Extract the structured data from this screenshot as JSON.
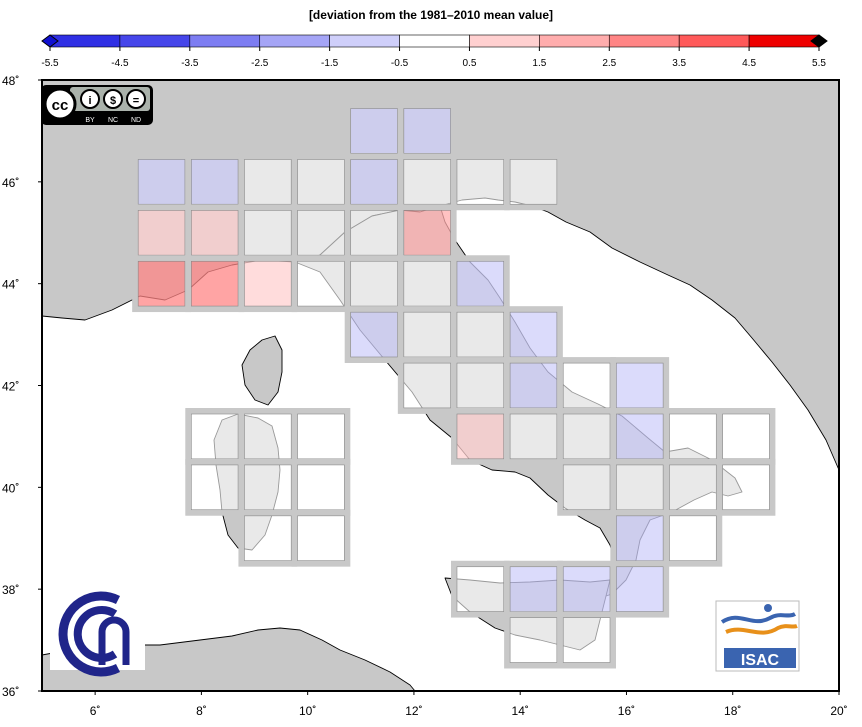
{
  "title": "[deviation from the 1981–2010 mean value]",
  "colorbar": {
    "ticks": [
      "-5.5",
      "-4.5",
      "-3.5",
      "-2.5",
      "-1.5",
      "-0.5",
      "0.5",
      "1.5",
      "2.5",
      "3.5",
      "4.5",
      "5.5"
    ],
    "tick_values": [
      -5.5,
      -4.5,
      -3.5,
      -2.5,
      -1.5,
      -0.5,
      0.5,
      1.5,
      2.5,
      3.5,
      4.5,
      5.5
    ],
    "colors": [
      "#2f2fe4",
      "#4646ea",
      "#7d7df2",
      "#a5a5f6",
      "#cfcffa",
      "#ffffff",
      "#ffd0d0",
      "#ffadad",
      "#ff8585",
      "#ff5a5a",
      "#ee0000"
    ]
  },
  "axes": {
    "lon_labels": [
      "6˚",
      "8˚",
      "10˚",
      "12˚",
      "14˚",
      "16˚",
      "18˚",
      "20˚"
    ],
    "lon_values": [
      6,
      8,
      10,
      12,
      14,
      16,
      18,
      20
    ],
    "lat_labels": [
      "36˚",
      "38˚",
      "40˚",
      "42˚",
      "44˚",
      "46˚",
      "48˚"
    ],
    "lat_values": [
      36,
      38,
      40,
      42,
      44,
      46,
      48
    ],
    "lon_range": [
      5,
      20
    ],
    "lat_range": [
      36,
      48
    ]
  },
  "license_badge": {
    "top": [
      "cc",
      "i",
      "$",
      "="
    ],
    "bottom": [
      "BY",
      "NC",
      "ND"
    ]
  },
  "logos": {
    "isac": "ISAC",
    "cnr": "cnr-logo"
  },
  "chart_data": {
    "type": "heatmap",
    "description_units": "deviation from the 1981–2010 mean value",
    "cell_size_deg": 1,
    "xlim": [
      5,
      20
    ],
    "ylim": [
      36,
      48
    ],
    "cells": [
      {
        "lon": 11.25,
        "lat": 47,
        "value": -1
      },
      {
        "lon": 12.25,
        "lat": 47,
        "value": -1
      },
      {
        "lon": 7.25,
        "lat": 46,
        "value": -1
      },
      {
        "lon": 8.25,
        "lat": 46,
        "value": -1
      },
      {
        "lon": 9.25,
        "lat": 46,
        "value": 0
      },
      {
        "lon": 10.25,
        "lat": 46,
        "value": 0
      },
      {
        "lon": 11.25,
        "lat": 46,
        "value": -1
      },
      {
        "lon": 12.25,
        "lat": 46,
        "value": 0
      },
      {
        "lon": 13.25,
        "lat": 46,
        "value": 0
      },
      {
        "lon": 14.25,
        "lat": 46,
        "value": 0
      },
      {
        "lon": 7.25,
        "lat": 45,
        "value": 1
      },
      {
        "lon": 8.25,
        "lat": 45,
        "value": 1
      },
      {
        "lon": 9.25,
        "lat": 45,
        "value": 0
      },
      {
        "lon": 10.25,
        "lat": 45,
        "value": 0
      },
      {
        "lon": 11.25,
        "lat": 45,
        "value": 0
      },
      {
        "lon": 12.25,
        "lat": 45,
        "value": 2
      },
      {
        "lon": 7.25,
        "lat": 44,
        "value": 3
      },
      {
        "lon": 8.25,
        "lat": 44,
        "value": 3
      },
      {
        "lon": 9.25,
        "lat": 44,
        "value": 1
      },
      {
        "lon": 10.25,
        "lat": 44,
        "value": 0
      },
      {
        "lon": 11.25,
        "lat": 44,
        "value": 0
      },
      {
        "lon": 12.25,
        "lat": 44,
        "value": 0
      },
      {
        "lon": 13.25,
        "lat": 44,
        "value": -1
      },
      {
        "lon": 11.25,
        "lat": 43,
        "value": -1
      },
      {
        "lon": 12.25,
        "lat": 43,
        "value": 0
      },
      {
        "lon": 13.25,
        "lat": 43,
        "value": 0
      },
      {
        "lon": 14.25,
        "lat": 43,
        "value": -1
      },
      {
        "lon": 12.25,
        "lat": 42,
        "value": 0
      },
      {
        "lon": 13.25,
        "lat": 42,
        "value": 0
      },
      {
        "lon": 14.25,
        "lat": 42,
        "value": -1
      },
      {
        "lon": 15.25,
        "lat": 42,
        "value": 0
      },
      {
        "lon": 16.25,
        "lat": 42,
        "value": -1
      },
      {
        "lon": 8.25,
        "lat": 41,
        "value": 0
      },
      {
        "lon": 9.25,
        "lat": 41,
        "value": 0
      },
      {
        "lon": 10.25,
        "lat": 41,
        "value": 0
      },
      {
        "lon": 13.25,
        "lat": 41,
        "value": 1
      },
      {
        "lon": 14.25,
        "lat": 41,
        "value": 0
      },
      {
        "lon": 15.25,
        "lat": 41,
        "value": 0
      },
      {
        "lon": 16.25,
        "lat": 41,
        "value": -1
      },
      {
        "lon": 17.25,
        "lat": 41,
        "value": 0
      },
      {
        "lon": 18.25,
        "lat": 41,
        "value": 0
      },
      {
        "lon": 8.25,
        "lat": 40,
        "value": 0
      },
      {
        "lon": 9.25,
        "lat": 40,
        "value": 0
      },
      {
        "lon": 10.25,
        "lat": 40,
        "value": 0
      },
      {
        "lon": 15.25,
        "lat": 40,
        "value": 0
      },
      {
        "lon": 16.25,
        "lat": 40,
        "value": 0
      },
      {
        "lon": 17.25,
        "lat": 40,
        "value": 0
      },
      {
        "lon": 18.25,
        "lat": 40,
        "value": 0
      },
      {
        "lon": 9.25,
        "lat": 39,
        "value": 0
      },
      {
        "lon": 10.25,
        "lat": 39,
        "value": 0
      },
      {
        "lon": 16.25,
        "lat": 39,
        "value": -1
      },
      {
        "lon": 17.25,
        "lat": 39,
        "value": 0
      },
      {
        "lon": 13.25,
        "lat": 38,
        "value": 0
      },
      {
        "lon": 14.25,
        "lat": 38,
        "value": -1
      },
      {
        "lon": 15.25,
        "lat": 38,
        "value": -1
      },
      {
        "lon": 16.25,
        "lat": 38,
        "value": -1
      },
      {
        "lon": 14.25,
        "lat": 37,
        "value": 0
      },
      {
        "lon": 15.25,
        "lat": 37,
        "value": 0
      }
    ]
  }
}
